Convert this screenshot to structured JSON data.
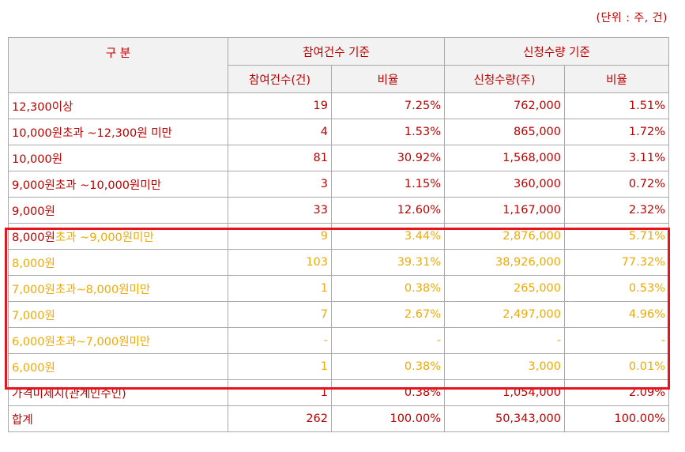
{
  "unit_note": "(단위 : 주, 건)",
  "headers": {
    "category": "구 분",
    "group_count": "참여건수 기준",
    "group_qty": "신청수량 기준",
    "count": "참여건수(건)",
    "count_ratio": "비율",
    "qty": "신청수량(주)",
    "qty_ratio": "비율"
  },
  "rows": [
    {
      "label": "12,300이상",
      "count": "19",
      "count_ratio": "7.25%",
      "qty": "762,000",
      "qty_ratio": "1.51%",
      "style": "red"
    },
    {
      "label": "10,000원초과 ~12,300원 미만",
      "count": "4",
      "count_ratio": "1.53%",
      "qty": "865,000",
      "qty_ratio": "1.72%",
      "style": "red"
    },
    {
      "label": "10,000원",
      "count": "81",
      "count_ratio": "30.92%",
      "qty": "1,568,000",
      "qty_ratio": "3.11%",
      "style": "red"
    },
    {
      "label": "9,000원초과 ~10,000원미만",
      "count": "3",
      "count_ratio": "1.15%",
      "qty": "360,000",
      "qty_ratio": "0.72%",
      "style": "red"
    },
    {
      "label": "9,000원",
      "count": "33",
      "count_ratio": "12.60%",
      "qty": "1,167,000",
      "qty_ratio": "2.32%",
      "style": "red"
    },
    {
      "label_lead": "8,000원",
      "label_rest": "초과 ~9,000원미만",
      "count": "9",
      "count_ratio": "3.44%",
      "qty": "2,876,000",
      "qty_ratio": "5.71%",
      "style": "mixed"
    },
    {
      "label": "8,000원",
      "count": "103",
      "count_ratio": "39.31%",
      "qty": "38,926,000",
      "qty_ratio": "77.32%",
      "style": "gold"
    },
    {
      "label": "7,000원초과~8,000원미만",
      "count": "1",
      "count_ratio": "0.38%",
      "qty": "265,000",
      "qty_ratio": "0.53%",
      "style": "gold"
    },
    {
      "label": "7,000원",
      "count": "7",
      "count_ratio": "2.67%",
      "qty": "2,497,000",
      "qty_ratio": "4.96%",
      "style": "gold"
    },
    {
      "label": "6,000원초과~7,000원미만",
      "count": "-",
      "count_ratio": "-",
      "qty": "-",
      "qty_ratio": "-",
      "style": "gold"
    },
    {
      "label": "6,000원",
      "count": "1",
      "count_ratio": "0.38%",
      "qty": "3,000",
      "qty_ratio": "0.01%",
      "style": "gold"
    },
    {
      "label": "가격미제시(관계인수인)",
      "count": "1",
      "count_ratio": "0.38%",
      "qty": "1,054,000",
      "qty_ratio": "2.09%",
      "style": "red"
    },
    {
      "label": "합계",
      "count": "262",
      "count_ratio": "100.00%",
      "qty": "50,343,000",
      "qty_ratio": "100.00%",
      "style": "red"
    }
  ],
  "colors": {
    "primary_text": "#c00000",
    "highlight_text": "#f2a900",
    "highlight_border": "#e8141d",
    "header_bg": "#f2f2f2",
    "grid_line": "#a9a9a9"
  }
}
